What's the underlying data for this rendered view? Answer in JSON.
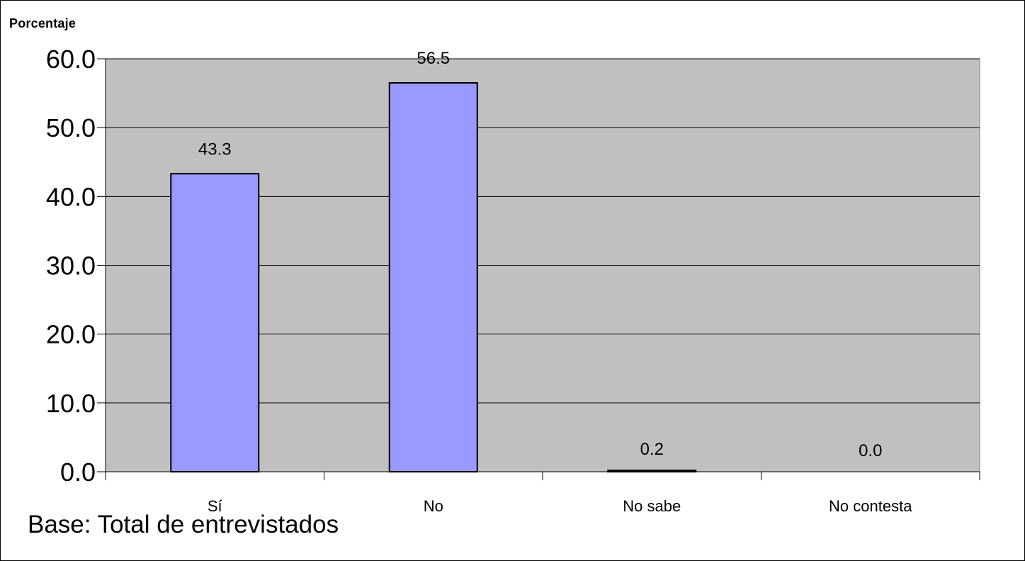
{
  "chart_data": {
    "type": "bar",
    "ylabel": "Porcentaje",
    "categories": [
      "Sí",
      "No",
      "No sabe",
      "No contesta"
    ],
    "values": [
      43.3,
      56.5,
      0.2,
      0.0
    ],
    "value_labels": [
      "43.3",
      "56.5",
      "0.2",
      "0.0"
    ],
    "ylim": [
      0,
      60
    ],
    "yticks": [
      0,
      10,
      20,
      30,
      40,
      50,
      60
    ],
    "ytick_labels": [
      "0.0",
      "10.0",
      "20.0",
      "30.0",
      "40.0",
      "50.0",
      "60.0"
    ],
    "grid": true,
    "note": "Base: Total de entrevistados",
    "colors": {
      "bar": "#9999ff",
      "plot_background": "#c0c0c0",
      "outline": "#000000"
    }
  }
}
